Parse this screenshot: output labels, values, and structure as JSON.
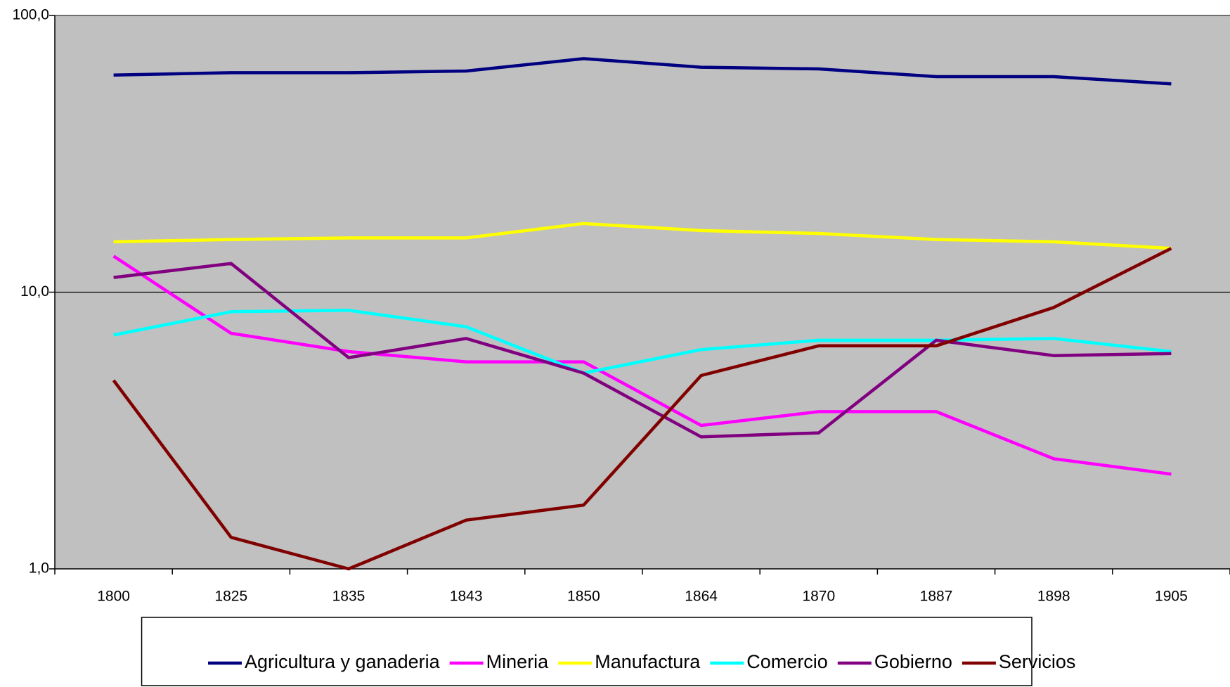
{
  "chart_data": {
    "type": "line",
    "categories": [
      "1800",
      "1825",
      "1835",
      "1843",
      "1850",
      "1864",
      "1870",
      "1887",
      "1898",
      "1905"
    ],
    "series": [
      {
        "name": "Agricultura y ganaderia",
        "color": "#000080",
        "values": [
          60.9,
          62.1,
          62.1,
          63.0,
          69.8,
          65.0,
          64.1,
          60.1,
          60.1,
          56.6
        ]
      },
      {
        "name": "Mineria",
        "color": "#ff00ff",
        "values": [
          13.5,
          7.1,
          6.1,
          5.6,
          5.6,
          3.3,
          3.7,
          3.7,
          2.5,
          2.2
        ]
      },
      {
        "name": "Manufactura",
        "color": "#ffff00",
        "values": [
          15.2,
          15.5,
          15.7,
          15.7,
          17.7,
          16.7,
          16.3,
          15.5,
          15.2,
          14.4
        ]
      },
      {
        "name": "Comercio",
        "color": "#00ffff",
        "values": [
          7.0,
          8.5,
          8.6,
          7.5,
          5.1,
          6.2,
          6.7,
          6.7,
          6.8,
          6.1
        ]
      },
      {
        "name": "Gobierno",
        "color": "#800080",
        "values": [
          11.3,
          12.7,
          5.8,
          6.8,
          5.1,
          3.0,
          3.1,
          6.7,
          5.9,
          6.0
        ]
      },
      {
        "name": "Servicios",
        "color": "#800000",
        "values": [
          4.8,
          1.3,
          1.0,
          1.5,
          1.7,
          5.0,
          6.4,
          6.4,
          8.8,
          14.4
        ]
      }
    ],
    "ylim": [
      1,
      100
    ],
    "yticks": [
      {
        "value": 1,
        "label": "1,0"
      },
      {
        "value": 10,
        "label": "10,0"
      },
      {
        "value": 100,
        "label": "100,0"
      }
    ],
    "log_scale": true,
    "grid": true,
    "legend": "bottom"
  }
}
